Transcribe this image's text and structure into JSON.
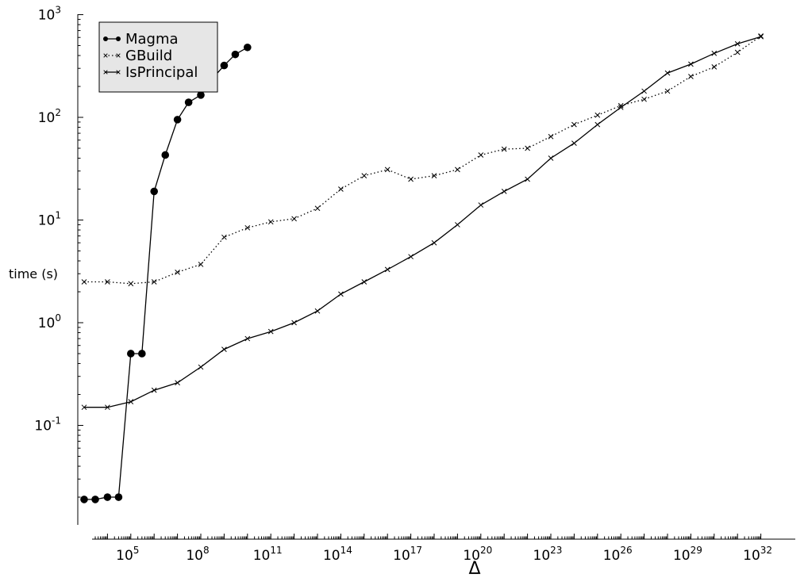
{
  "chart_data": {
    "type": "line",
    "title": "",
    "xlabel": "Δ",
    "ylabel": "time (s)",
    "x_scale": "log10",
    "y_scale": "log10",
    "xlim": [
      1,
      1e+32
    ],
    "ylim": [
      0.01,
      1000
    ],
    "x_ticks": [
      {
        "exp": 5,
        "base": "10",
        "sup": "5"
      },
      {
        "exp": 8,
        "base": "10",
        "sup": "8"
      },
      {
        "exp": 11,
        "base": "10",
        "sup": "11"
      },
      {
        "exp": 14,
        "base": "10",
        "sup": "14"
      },
      {
        "exp": 17,
        "base": "10",
        "sup": "17"
      },
      {
        "exp": 20,
        "base": "10",
        "sup": "20"
      },
      {
        "exp": 23,
        "base": "10",
        "sup": "23"
      },
      {
        "exp": 26,
        "base": "10",
        "sup": "26"
      },
      {
        "exp": 29,
        "base": "10",
        "sup": "29"
      },
      {
        "exp": 32,
        "base": "10",
        "sup": "32"
      }
    ],
    "y_ticks": [
      {
        "exp": -1,
        "base": "10",
        "sup": "-1"
      },
      {
        "exp": 0,
        "base": "10",
        "sup": "0"
      },
      {
        "exp": 1,
        "base": "10",
        "sup": "1"
      },
      {
        "exp": 2,
        "base": "10",
        "sup": "2"
      },
      {
        "exp": 3,
        "base": "10",
        "sup": "3"
      }
    ],
    "grid": false,
    "legend_position": "top-left",
    "series": [
      {
        "name": "Magma",
        "marker": "filled-circle",
        "line": "solid",
        "color": "#000000",
        "points": [
          [
            1000.0,
            0.019
          ],
          [
            3000.0,
            0.019
          ],
          [
            10000.0,
            0.02
          ],
          [
            30000.0,
            0.02
          ],
          [
            100000.0,
            0.5
          ],
          [
            300000.0,
            0.5
          ],
          [
            1000000.0,
            19
          ],
          [
            3000000.0,
            43
          ],
          [
            10000000.0,
            95
          ],
          [
            30000000.0,
            140
          ],
          [
            100000000.0,
            165
          ],
          [
            300000000.0,
            235
          ],
          [
            1000000000.0,
            320
          ],
          [
            3000000000.0,
            410
          ],
          [
            10000000000.0,
            480
          ]
        ]
      },
      {
        "name": "GBuild",
        "marker": "x",
        "line": "dotted",
        "color": "#000000",
        "points": [
          [
            1000.0,
            2.5
          ],
          [
            10000.0,
            2.5
          ],
          [
            100000.0,
            2.4
          ],
          [
            1000000.0,
            2.5
          ],
          [
            10000000.0,
            3.1
          ],
          [
            100000000.0,
            3.7
          ],
          [
            1000000000.0,
            6.8
          ],
          [
            10000000000.0,
            8.4
          ],
          [
            100000000000.0,
            9.6
          ],
          [
            1000000000000.0,
            10.3
          ],
          [
            10000000000000.0,
            13
          ],
          [
            100000000000000.0,
            20
          ],
          [
            1000000000000000.0,
            27
          ],
          [
            1e+16,
            31
          ],
          [
            1e+17,
            25
          ],
          [
            1e+18,
            27
          ],
          [
            1e+19,
            31
          ],
          [
            1e+20,
            43
          ],
          [
            1e+21,
            49
          ],
          [
            1e+22,
            50
          ],
          [
            1e+23,
            65
          ],
          [
            1e+24,
            85
          ],
          [
            1e+25,
            105
          ],
          [
            1e+26,
            130
          ],
          [
            1e+27,
            150
          ],
          [
            1e+28,
            180
          ],
          [
            1e+29,
            250
          ],
          [
            1e+30,
            310
          ],
          [
            1e+31,
            430
          ],
          [
            1e+32,
            620
          ]
        ]
      },
      {
        "name": "IsPrincipal",
        "marker": "x",
        "line": "solid",
        "color": "#000000",
        "points": [
          [
            1000.0,
            0.15
          ],
          [
            10000.0,
            0.15
          ],
          [
            100000.0,
            0.17
          ],
          [
            1000000.0,
            0.22
          ],
          [
            10000000.0,
            0.26
          ],
          [
            100000000.0,
            0.37
          ],
          [
            1000000000.0,
            0.55
          ],
          [
            10000000000.0,
            0.7
          ],
          [
            100000000000.0,
            0.82
          ],
          [
            1000000000000.0,
            1.0
          ],
          [
            10000000000000.0,
            1.3
          ],
          [
            100000000000000.0,
            1.9
          ],
          [
            1000000000000000.0,
            2.5
          ],
          [
            1e+16,
            3.3
          ],
          [
            1e+17,
            4.4
          ],
          [
            1e+18,
            6.0
          ],
          [
            1e+19,
            9.0
          ],
          [
            1e+20,
            14
          ],
          [
            1e+21,
            19
          ],
          [
            1e+22,
            25
          ],
          [
            1e+23,
            40
          ],
          [
            1e+24,
            56
          ],
          [
            1e+25,
            85
          ],
          [
            1e+26,
            125
          ],
          [
            1e+27,
            180
          ],
          [
            1e+28,
            270
          ],
          [
            1e+29,
            330
          ],
          [
            1e+30,
            420
          ],
          [
            1e+31,
            520
          ],
          [
            1e+32,
            610
          ]
        ]
      }
    ]
  }
}
